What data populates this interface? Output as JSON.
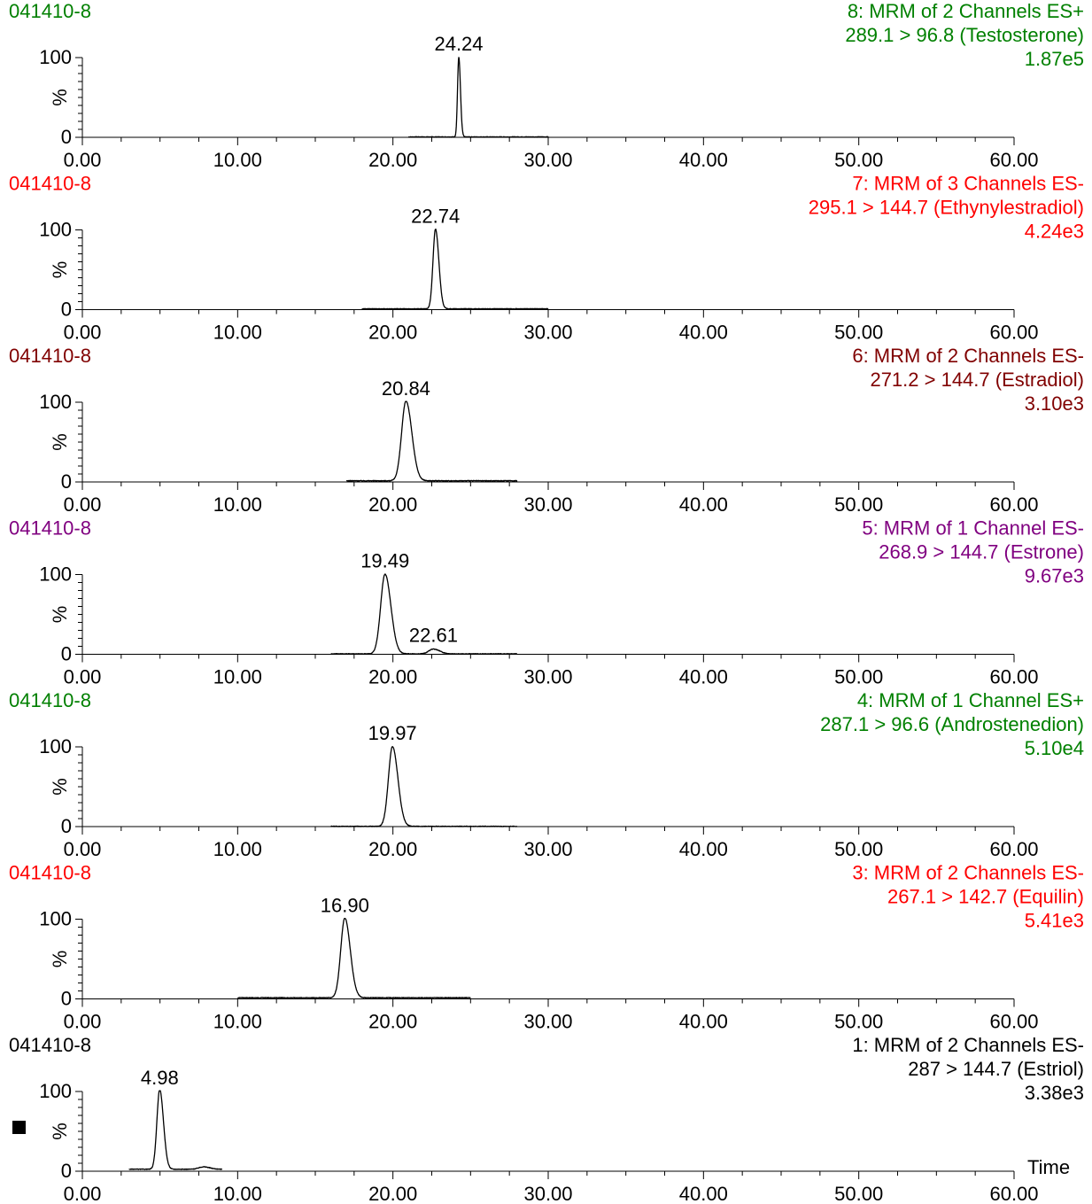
{
  "x_axis_label": "Time",
  "legend_marker_color": "#000000",
  "colors": {
    "green": "#008000",
    "red": "#ff0000",
    "maroon": "#800000",
    "purple": "#800080",
    "black": "#000000"
  },
  "chart_data": [
    {
      "type": "line",
      "sample": "041410-8",
      "header_lines": [
        "8: MRM of 2 Channels ES+",
        "289.1 > 96.8 (Testosterone)",
        "1.87e5"
      ],
      "color": "#008000",
      "xlim": [
        0,
        60
      ],
      "ylim": [
        0,
        100
      ],
      "x_ticks": [
        "0.00",
        "10.00",
        "20.00",
        "30.00",
        "40.00",
        "50.00",
        "60.00"
      ],
      "y_ticks": [
        "0",
        "100"
      ],
      "ylabel": "%",
      "trace_range": [
        21.0,
        30.0
      ],
      "baseline": 0.5,
      "peaks": [
        {
          "rt": 24.24,
          "height": 100,
          "width": 0.08,
          "label": "24.24"
        }
      ]
    },
    {
      "type": "line",
      "sample": "041410-8",
      "header_lines": [
        "7: MRM of 3 Channels ES-",
        "295.1 > 144.7 (Ethynylestradiol)",
        "4.24e3"
      ],
      "color": "#ff0000",
      "xlim": [
        0,
        60
      ],
      "ylim": [
        0,
        100
      ],
      "x_ticks": [
        "0.00",
        "10.00",
        "20.00",
        "30.00",
        "40.00",
        "50.00",
        "60.00"
      ],
      "y_ticks": [
        "0",
        "100"
      ],
      "ylabel": "%",
      "trace_range": [
        18.0,
        30.0
      ],
      "baseline": 1.0,
      "peaks": [
        {
          "rt": 22.74,
          "height": 100,
          "width": 0.16,
          "label": "22.74"
        }
      ]
    },
    {
      "type": "line",
      "sample": "041410-8",
      "header_lines": [
        "6: MRM of 2 Channels ES-",
        "271.2 > 144.7 (Estradiol)",
        "3.10e3"
      ],
      "color": "#800000",
      "xlim": [
        0,
        60
      ],
      "ylim": [
        0,
        100
      ],
      "x_ticks": [
        "0.00",
        "10.00",
        "20.00",
        "30.00",
        "40.00",
        "50.00",
        "60.00"
      ],
      "y_ticks": [
        "0",
        "100"
      ],
      "ylabel": "%",
      "trace_range": [
        17.0,
        28.0
      ],
      "baseline": 1.5,
      "peaks": [
        {
          "rt": 20.84,
          "height": 100,
          "width": 0.28,
          "label": "20.84"
        }
      ]
    },
    {
      "type": "line",
      "sample": "041410-8",
      "header_lines": [
        "5: MRM of 1 Channel ES-",
        "268.9 > 144.7 (Estrone)",
        "9.67e3"
      ],
      "color": "#800080",
      "xlim": [
        0,
        60
      ],
      "ylim": [
        0,
        100
      ],
      "x_ticks": [
        "0.00",
        "10.00",
        "20.00",
        "30.00",
        "40.00",
        "50.00",
        "60.00"
      ],
      "y_ticks": [
        "0",
        "100"
      ],
      "ylabel": "%",
      "trace_range": [
        16.0,
        28.0
      ],
      "baseline": 0.5,
      "peaks": [
        {
          "rt": 19.49,
          "height": 100,
          "width": 0.28,
          "label": "19.49"
        },
        {
          "rt": 22.61,
          "height": 6,
          "width": 0.3,
          "label": "22.61"
        }
      ]
    },
    {
      "type": "line",
      "sample": "041410-8",
      "header_lines": [
        "4: MRM of 1 Channel ES+",
        "287.1 > 96.6 (Androstenedion)",
        "5.10e4"
      ],
      "color": "#008000",
      "xlim": [
        0,
        60
      ],
      "ylim": [
        0,
        100
      ],
      "x_ticks": [
        "0.00",
        "10.00",
        "20.00",
        "30.00",
        "40.00",
        "50.00",
        "60.00"
      ],
      "y_ticks": [
        "0",
        "100"
      ],
      "ylabel": "%",
      "trace_range": [
        16.0,
        28.0
      ],
      "baseline": 0.3,
      "peaks": [
        {
          "rt": 19.97,
          "height": 100,
          "width": 0.26,
          "label": "19.97"
        }
      ]
    },
    {
      "type": "line",
      "sample": "041410-8",
      "header_lines": [
        "3: MRM of 2 Channels ES-",
        "267.1 > 142.7 (Equilin)",
        "5.41e3"
      ],
      "color": "#ff0000",
      "xlim": [
        0,
        60
      ],
      "ylim": [
        0,
        100
      ],
      "x_ticks": [
        "0.00",
        "10.00",
        "20.00",
        "30.00",
        "40.00",
        "50.00",
        "60.00"
      ],
      "y_ticks": [
        "0",
        "100"
      ],
      "ylabel": "%",
      "trace_range": [
        10.0,
        25.0
      ],
      "baseline": 1.5,
      "peaks": [
        {
          "rt": 16.9,
          "height": 100,
          "width": 0.26,
          "label": "16.90"
        }
      ]
    },
    {
      "type": "line",
      "sample": "041410-8",
      "header_lines": [
        "1: MRM of 2 Channels ES-",
        "287 > 144.7 (Estriol)",
        "3.38e3"
      ],
      "color": "#000000",
      "xlim": [
        0,
        60
      ],
      "ylim": [
        0,
        100
      ],
      "x_ticks": [
        "0.00",
        "10.00",
        "20.00",
        "30.00",
        "40.00",
        "50.00",
        "60.00"
      ],
      "y_ticks": [
        "0",
        "100"
      ],
      "ylabel": "%",
      "trace_range": [
        3.0,
        9.0
      ],
      "baseline": 2.5,
      "x_axis_title": "Time",
      "legend_marker": true,
      "peaks": [
        {
          "rt": 4.98,
          "height": 100,
          "width": 0.18,
          "label": "4.98"
        },
        {
          "rt": 7.8,
          "height": 3,
          "width": 0.3,
          "label": ""
        }
      ]
    }
  ]
}
